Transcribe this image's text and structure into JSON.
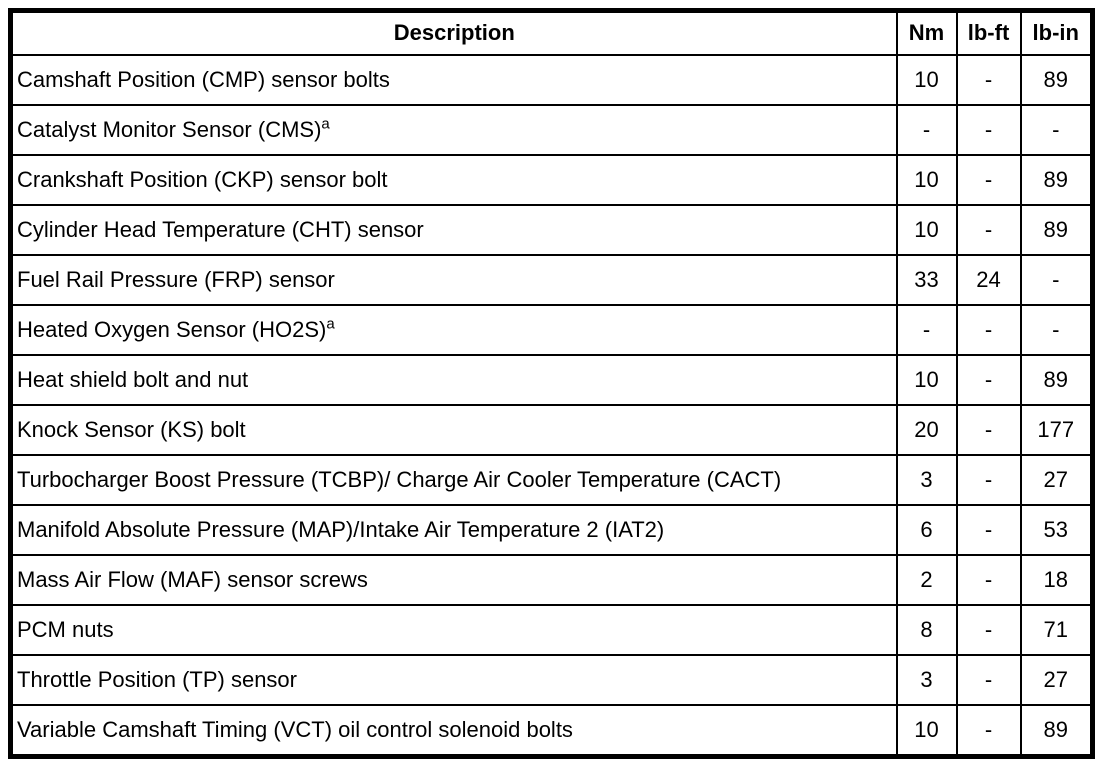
{
  "table": {
    "columns": {
      "description": "Description",
      "nm": "Nm",
      "lb_ft": "lb-ft",
      "lb_in": "lb-in"
    },
    "border_color": "#000000",
    "rows": [
      {
        "description": "Camshaft Position (CMP) sensor bolts",
        "footnote": "",
        "nm": "10",
        "lb_ft": "-",
        "lb_in": "89"
      },
      {
        "description": "Catalyst Monitor Sensor (CMS)",
        "footnote": "a",
        "nm": "-",
        "lb_ft": "-",
        "lb_in": "-"
      },
      {
        "description": "Crankshaft Position (CKP) sensor bolt",
        "footnote": "",
        "nm": "10",
        "lb_ft": "-",
        "lb_in": "89"
      },
      {
        "description": "Cylinder Head Temperature (CHT) sensor",
        "footnote": "",
        "nm": "10",
        "lb_ft": "-",
        "lb_in": "89"
      },
      {
        "description": "Fuel Rail Pressure (FRP) sensor",
        "footnote": "",
        "nm": "33",
        "lb_ft": "24",
        "lb_in": "-"
      },
      {
        "description": "Heated Oxygen Sensor (HO2S)",
        "footnote": "a",
        "nm": "-",
        "lb_ft": "-",
        "lb_in": "-"
      },
      {
        "description": "Heat shield bolt and nut",
        "footnote": "",
        "nm": "10",
        "lb_ft": "-",
        "lb_in": "89"
      },
      {
        "description": "Knock Sensor (KS) bolt",
        "footnote": "",
        "nm": "20",
        "lb_ft": "-",
        "lb_in": "177"
      },
      {
        "description": "Turbocharger Boost Pressure (TCBP)/ Charge Air Cooler Temperature (CACT)",
        "footnote": "",
        "nm": "3",
        "lb_ft": "-",
        "lb_in": "27"
      },
      {
        "description": "Manifold Absolute Pressure (MAP)/Intake Air Temperature 2 (IAT2)",
        "footnote": "",
        "nm": "6",
        "lb_ft": "-",
        "lb_in": "53"
      },
      {
        "description": "Mass Air Flow (MAF) sensor screws",
        "footnote": "",
        "nm": "2",
        "lb_ft": "-",
        "lb_in": "18"
      },
      {
        "description": "PCM nuts",
        "footnote": "",
        "nm": "8",
        "lb_ft": "-",
        "lb_in": "71"
      },
      {
        "description": "Throttle Position (TP) sensor",
        "footnote": "",
        "nm": "3",
        "lb_ft": "-",
        "lb_in": "27"
      },
      {
        "description": "Variable Camshaft Timing (VCT) oil control solenoid bolts",
        "footnote": "",
        "nm": "10",
        "lb_ft": "-",
        "lb_in": "89"
      }
    ]
  }
}
